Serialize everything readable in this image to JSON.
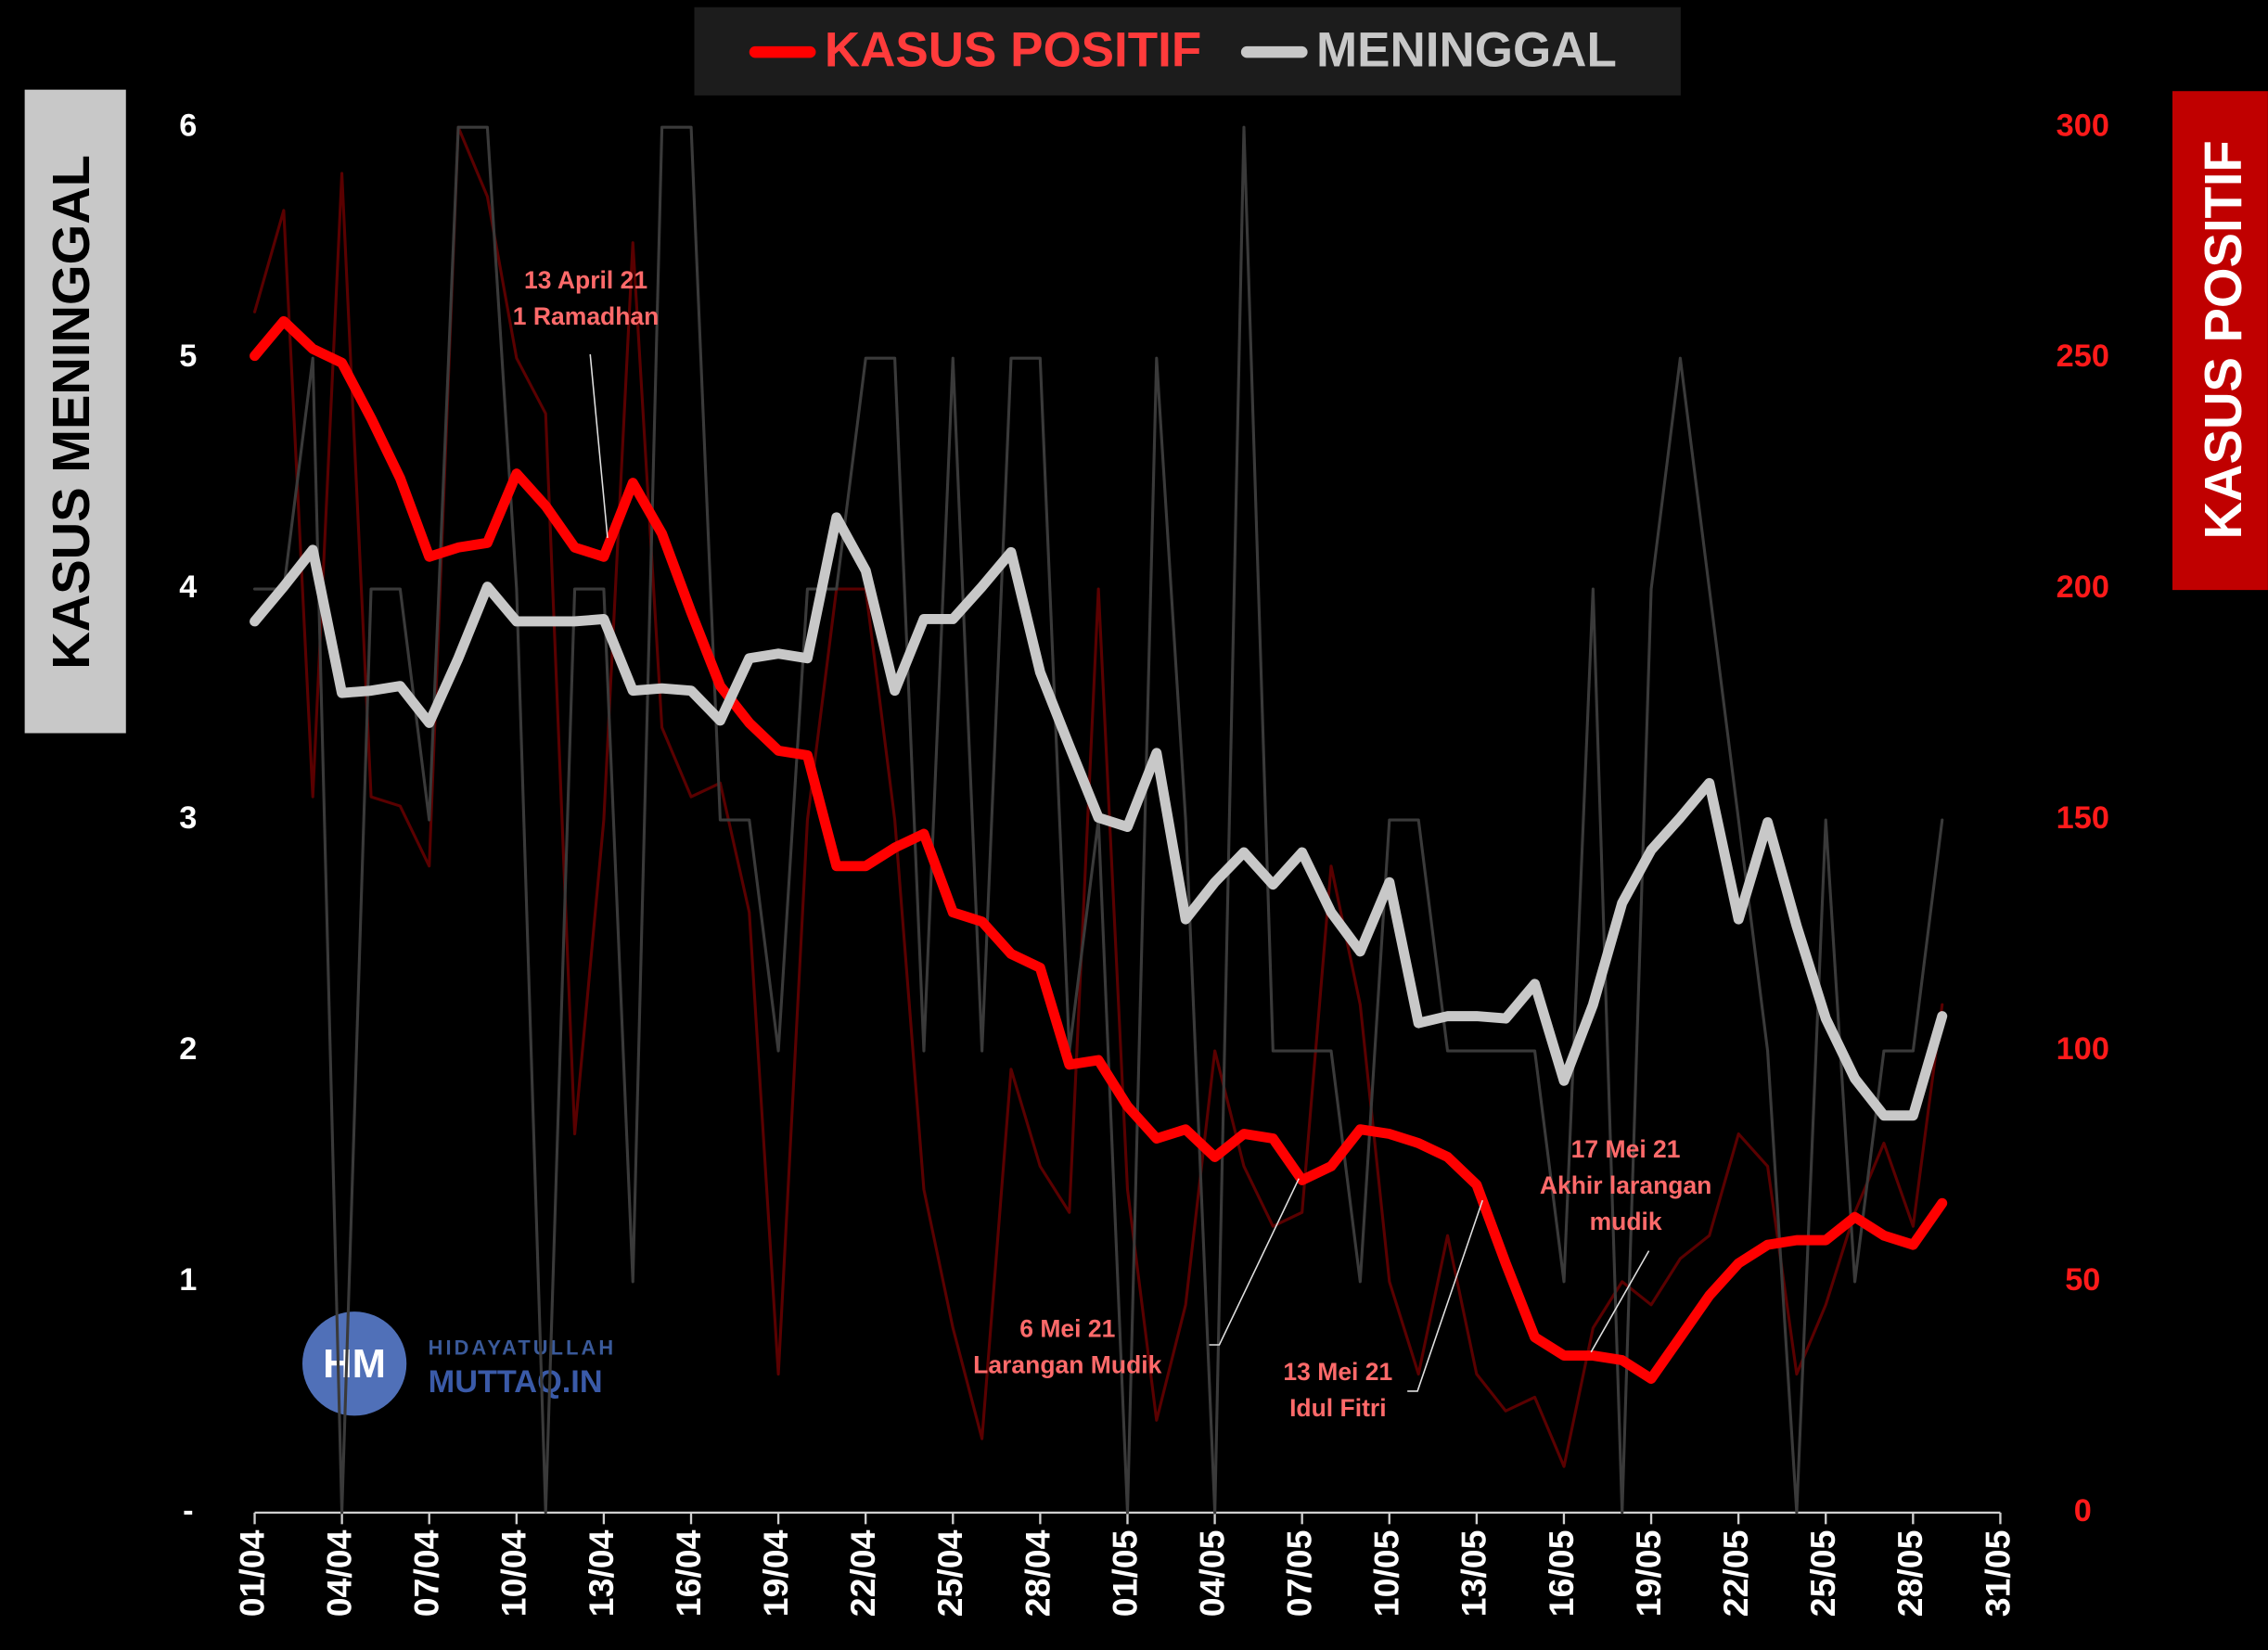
{
  "chart_data": {
    "type": "line",
    "categories": [
      "01/04",
      null,
      null,
      "04/04",
      null,
      null,
      "07/04",
      null,
      null,
      "10/04",
      null,
      null,
      "13/04",
      null,
      null,
      "16/04",
      null,
      null,
      "19/04",
      null,
      null,
      "22/04",
      null,
      null,
      "25/04",
      null,
      null,
      "28/04",
      null,
      null,
      "01/05",
      null,
      null,
      "04/05",
      null,
      null,
      "07/05",
      null,
      null,
      "10/05",
      null,
      null,
      "13/05",
      null,
      null,
      "16/05",
      null,
      null,
      "19/05",
      null,
      null,
      "22/05",
      null,
      null,
      "25/05",
      null,
      null,
      "28/05",
      null,
      null,
      "31/05"
    ],
    "ylabel": "KASUS MENINGGAL",
    "y2label": "KASUS POSITIF",
    "ylim": [
      0,
      6
    ],
    "yticks": [
      {
        "value": 0,
        "label": "-"
      },
      1,
      2,
      3,
      4,
      5,
      6
    ],
    "y2lim": [
      0,
      300
    ],
    "y2ticks": [
      0,
      50,
      100,
      150,
      200,
      250,
      300
    ],
    "series": [
      {
        "color": "#5a0000",
        "axis": "y2",
        "width": 2,
        "values": [
          260,
          282,
          155,
          290,
          155,
          153,
          140,
          300,
          285,
          250,
          238,
          82,
          150,
          275,
          170,
          155,
          158,
          130,
          30,
          150,
          200,
          200,
          150,
          70,
          40,
          16,
          96,
          75,
          65,
          200,
          70,
          20,
          45,
          100,
          75,
          62,
          65,
          140,
          110,
          50,
          30,
          60,
          30,
          22,
          25,
          10,
          40,
          50,
          45,
          55,
          60,
          82,
          75,
          30,
          45,
          65,
          80,
          62,
          110,
          null,
          null
        ]
      },
      {
        "color": "#3a3a3a",
        "width": 2,
        "values": [
          4,
          4,
          5,
          0,
          4,
          4,
          3,
          6,
          6,
          4,
          0,
          4,
          4,
          1,
          6,
          6,
          3,
          3,
          2,
          4,
          4,
          5,
          5,
          2,
          5,
          2,
          5,
          5,
          2,
          3,
          0,
          5,
          3,
          0,
          6,
          2,
          2,
          2,
          1,
          3,
          3,
          2,
          2,
          2,
          2,
          1,
          4,
          0,
          4,
          5,
          4,
          3,
          2,
          0,
          3,
          1,
          2,
          2,
          3,
          null,
          null
        ]
      },
      {
        "name": "KASUS POSITIF",
        "color": "#ff0000",
        "axis": "y2",
        "width": 7,
        "values": [
          250.5,
          258,
          252,
          249,
          237,
          224,
          207,
          209,
          210,
          225,
          218,
          209,
          207,
          223,
          212,
          195,
          179,
          171,
          165,
          164,
          140,
          140,
          144,
          147,
          130,
          128,
          121,
          118,
          97,
          98,
          88,
          81,
          83,
          77,
          82,
          81,
          72,
          75,
          83,
          82,
          80,
          77,
          71,
          54,
          38,
          34,
          34,
          33,
          29,
          38,
          47,
          54,
          58,
          59,
          59,
          64,
          60,
          58,
          67,
          null,
          null
        ]
      },
      {
        "name": "MENINGGAL",
        "color": "#c8c8c8",
        "width": 7,
        "values": [
          3.86,
          4.01,
          4.17,
          3.55,
          3.56,
          3.58,
          3.42,
          3.7,
          4.01,
          3.86,
          3.86,
          3.86,
          3.87,
          3.56,
          3.57,
          3.56,
          3.43,
          3.7,
          3.72,
          3.7,
          4.31,
          4.08,
          3.56,
          3.87,
          3.87,
          4.01,
          4.16,
          3.64,
          3.32,
          3.01,
          2.97,
          3.29,
          2.57,
          2.73,
          2.86,
          2.72,
          2.86,
          2.6,
          2.43,
          2.73,
          2.12,
          2.15,
          2.15,
          2.14,
          2.29,
          1.87,
          2.2,
          2.64,
          2.87,
          3.01,
          3.16,
          2.57,
          2.99,
          2.54,
          2.14,
          1.88,
          1.72,
          1.72,
          2.15,
          null,
          null
        ]
      }
    ],
    "annotations": [
      {
        "lines": [
          "13 April 21",
          "1 Ramadhan"
        ]
      },
      {
        "lines": [
          "6 Mei 21",
          "Larangan Mudik"
        ]
      },
      {
        "lines": [
          "13 Mei 21",
          "Idul Fitri"
        ]
      },
      {
        "lines": [
          "17 Mei 21",
          "Akhir larangan",
          "mudik"
        ]
      }
    ]
  },
  "watermark": {
    "logo": "HM",
    "line1": "HIDAYATULLAH",
    "line2": "MUTTAQ.IN"
  }
}
